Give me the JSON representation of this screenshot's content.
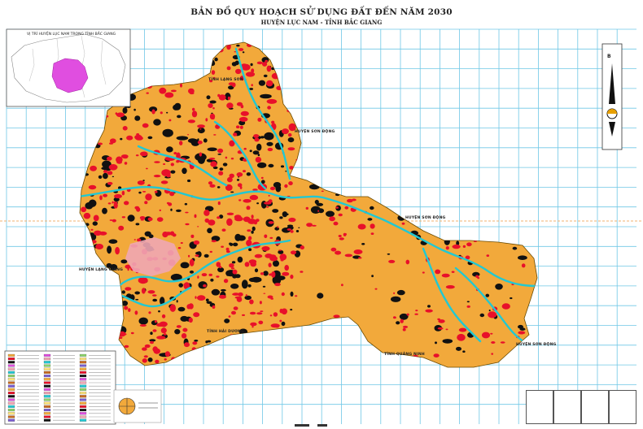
{
  "map": {
    "title": "BẢN ĐỒ QUY HOẠCH SỬ DỤNG ĐẤT ĐẾN NĂM 2030",
    "subtitle": "HUYỆN LỤC NAM - TỈNH BẮC GIANG",
    "inset_title": "VỊ TRÍ HUYỆN LỤC NAM TRONG TỈNH BẮC GIANG",
    "north_arrow_letter": "B",
    "colors": {
      "agricultural_land": "#f2a93b",
      "residential_land": "#e8102a",
      "forest_land": "#111111",
      "water": "#22c8d2",
      "grid": "#6fc7e6",
      "urban_land": "#f0a6b4",
      "district_highlight": "#e04ee0",
      "boundary": "#f0a0a0"
    },
    "place_labels": {
      "north_west": "TỈNH LẠNG SƠN",
      "north_east": "HUYỆN SƠN ĐỘNG",
      "east": "HUYỆN SƠN ĐỘNG",
      "west": "HUYỆN LẠNG GIANG",
      "south": "TỈNH HẢI DƯƠNG",
      "south_east": "TỈNH QUẢNG NINH",
      "far_south_east": "HUYỆN SƠN ĐỘNG"
    }
  }
}
